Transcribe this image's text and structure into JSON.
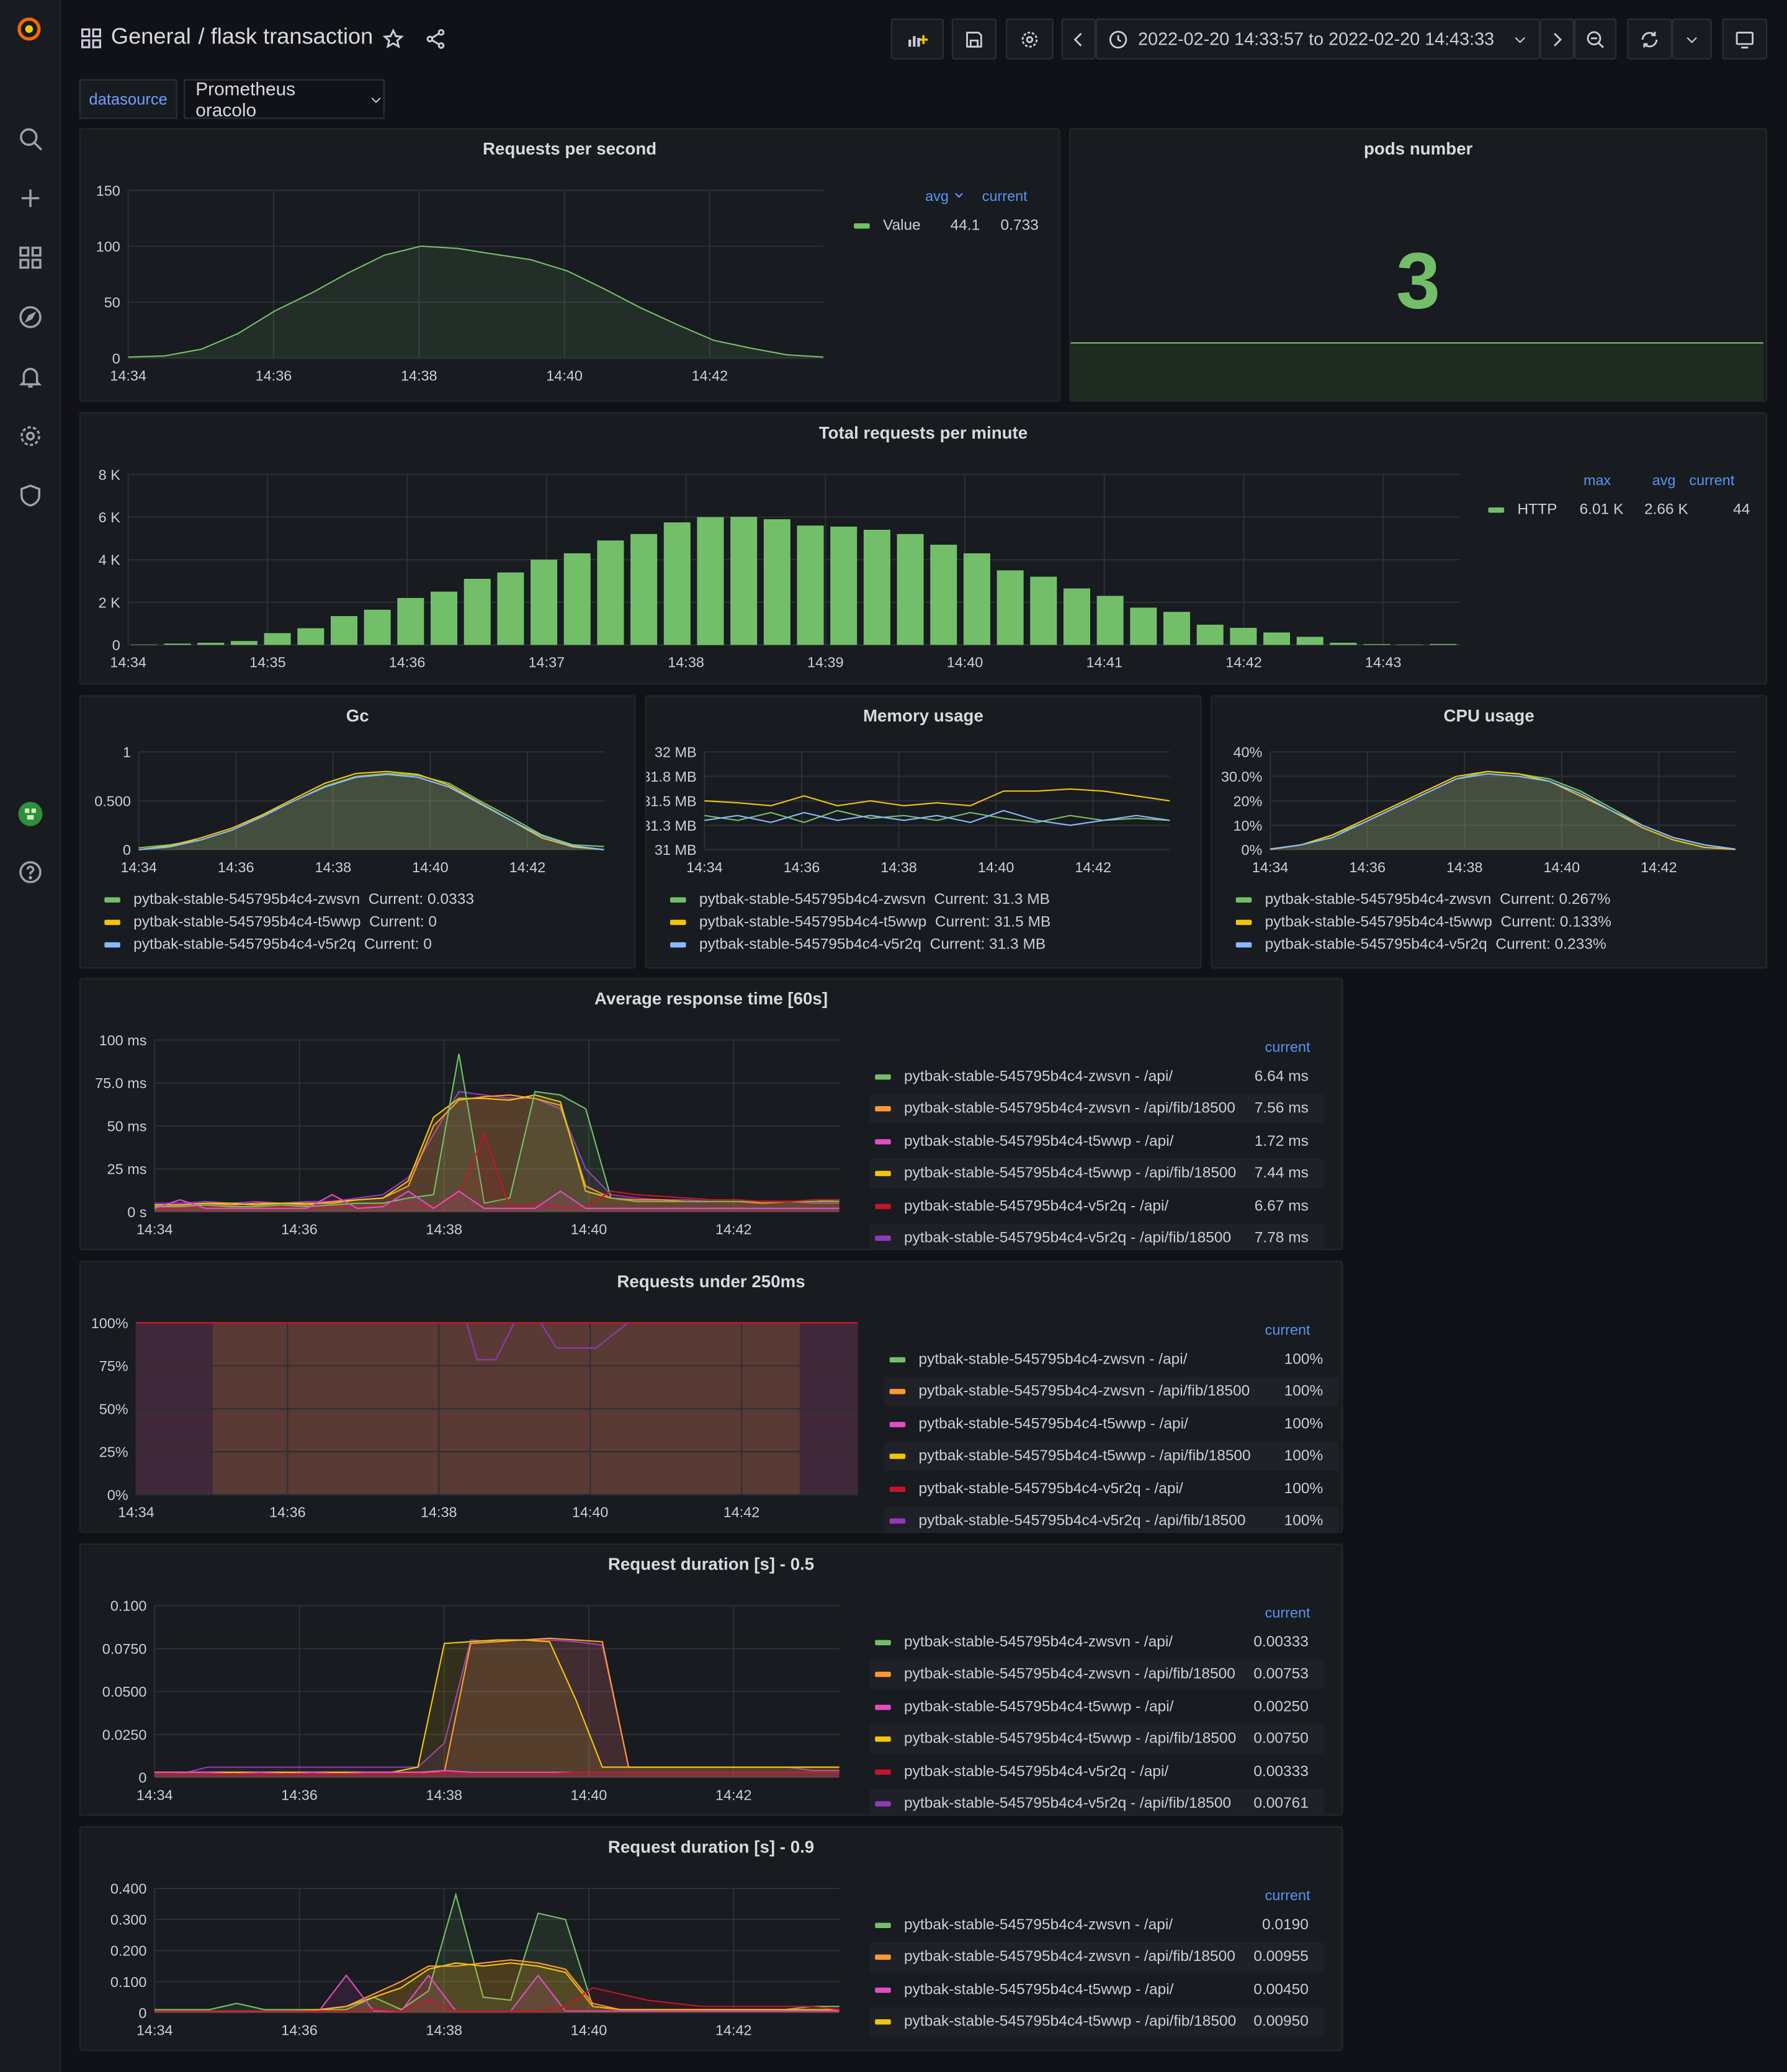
{
  "header": {
    "folder": "General",
    "title": "/ flask transaction",
    "time_range": "2022-02-20 14:33:57 to 2022-02-20 14:43:33"
  },
  "variables": {
    "label": "datasource",
    "value": "Prometheus oracolo"
  },
  "colors": {
    "green": "#73bf69",
    "orange": "#ff9830",
    "magenta": "#e04ec6",
    "yellow": "#f2c50c",
    "darkred": "#c4162a",
    "purple": "#8f3bb8",
    "cyan": "#8ab8ff",
    "blue": "#5794f2"
  },
  "panels": {
    "rps": {
      "title": "Requests per second",
      "legend_headers": [
        "avg",
        "current"
      ],
      "legend": [
        {
          "name": "Value",
          "avg": "44.1",
          "current": "0.733"
        }
      ],
      "y_ticks": [
        "150",
        "100",
        "50",
        "0"
      ],
      "x_ticks": [
        "14:34",
        "14:36",
        "14:38",
        "14:40",
        "14:42"
      ]
    },
    "pods": {
      "title": "pods number",
      "value": "3"
    },
    "trpm": {
      "title": "Total requests per minute",
      "legend_headers": [
        "max",
        "avg",
        "current"
      ],
      "legend": [
        {
          "name": "HTTP",
          "max": "6.01 K",
          "avg": "2.66 K",
          "current": "44"
        }
      ],
      "y_ticks": [
        "8 K",
        "6 K",
        "4 K",
        "2 K",
        "0"
      ],
      "x_ticks": [
        "14:34",
        "14:35",
        "14:36",
        "14:37",
        "14:38",
        "14:39",
        "14:40",
        "14:41",
        "14:42",
        "14:43"
      ]
    },
    "gc": {
      "title": "Gc",
      "y_ticks": [
        "1",
        "0.500",
        "0"
      ],
      "x_ticks": [
        "14:34",
        "14:36",
        "14:38",
        "14:40",
        "14:42"
      ],
      "legend": [
        {
          "name": "pytbak-stable-545795b4c4-zwsvn",
          "current": "Current: 0.0333"
        },
        {
          "name": "pytbak-stable-545795b4c4-t5wwp",
          "current": "Current: 0"
        },
        {
          "name": "pytbak-stable-545795b4c4-v5r2q",
          "current": "Current: 0"
        }
      ]
    },
    "mem": {
      "title": "Memory usage",
      "y_ticks": [
        "32 MB",
        "31.8 MB",
        "31.5 MB",
        "31.3 MB",
        "31 MB"
      ],
      "x_ticks": [
        "14:34",
        "14:36",
        "14:38",
        "14:40",
        "14:42"
      ],
      "legend": [
        {
          "name": "pytbak-stable-545795b4c4-zwsvn",
          "current": "Current: 31.3 MB"
        },
        {
          "name": "pytbak-stable-545795b4c4-t5wwp",
          "current": "Current: 31.5 MB"
        },
        {
          "name": "pytbak-stable-545795b4c4-v5r2q",
          "current": "Current: 31.3 MB"
        }
      ]
    },
    "cpu": {
      "title": "CPU usage",
      "y_ticks": [
        "40%",
        "30.0%",
        "20%",
        "10%",
        "0%"
      ],
      "x_ticks": [
        "14:34",
        "14:36",
        "14:38",
        "14:40",
        "14:42"
      ],
      "legend": [
        {
          "name": "pytbak-stable-545795b4c4-zwsvn",
          "current": "Current: 0.267%"
        },
        {
          "name": "pytbak-stable-545795b4c4-t5wwp",
          "current": "Current: 0.133%"
        },
        {
          "name": "pytbak-stable-545795b4c4-v5r2q",
          "current": "Current: 0.233%"
        }
      ]
    },
    "art": {
      "title": "Average response time [60s]",
      "legend_header": "current",
      "y_ticks": [
        "100 ms",
        "75.0 ms",
        "50 ms",
        "25 ms",
        "0 s"
      ],
      "x_ticks": [
        "14:34",
        "14:36",
        "14:38",
        "14:40",
        "14:42"
      ],
      "legend": [
        {
          "name": "pytbak-stable-545795b4c4-zwsvn - /api/",
          "current": "6.64 ms"
        },
        {
          "name": "pytbak-stable-545795b4c4-zwsvn - /api/fib/18500",
          "current": "7.56 ms"
        },
        {
          "name": "pytbak-stable-545795b4c4-t5wwp - /api/",
          "current": "1.72 ms"
        },
        {
          "name": "pytbak-stable-545795b4c4-t5wwp - /api/fib/18500",
          "current": "7.44 ms"
        },
        {
          "name": "pytbak-stable-545795b4c4-v5r2q - /api/",
          "current": "6.67 ms"
        },
        {
          "name": "pytbak-stable-545795b4c4-v5r2q - /api/fib/18500",
          "current": "7.78 ms"
        }
      ]
    },
    "r250": {
      "title": "Requests under 250ms",
      "legend_header": "current",
      "y_ticks": [
        "100%",
        "75%",
        "50%",
        "25%",
        "0%"
      ],
      "x_ticks": [
        "14:34",
        "14:36",
        "14:38",
        "14:40",
        "14:42"
      ],
      "legend": [
        {
          "name": "pytbak-stable-545795b4c4-zwsvn - /api/",
          "current": "100%"
        },
        {
          "name": "pytbak-stable-545795b4c4-zwsvn - /api/fib/18500",
          "current": "100%"
        },
        {
          "name": "pytbak-stable-545795b4c4-t5wwp - /api/",
          "current": "100%"
        },
        {
          "name": "pytbak-stable-545795b4c4-t5wwp - /api/fib/18500",
          "current": "100%"
        },
        {
          "name": "pytbak-stable-545795b4c4-v5r2q - /api/",
          "current": "100%"
        },
        {
          "name": "pytbak-stable-545795b4c4-v5r2q - /api/fib/18500",
          "current": "100%"
        }
      ]
    },
    "rd05": {
      "title": "Request duration [s] - 0.5",
      "legend_header": "current",
      "y_ticks": [
        "0.100",
        "0.0750",
        "0.0500",
        "0.0250",
        "0"
      ],
      "x_ticks": [
        "14:34",
        "14:36",
        "14:38",
        "14:40",
        "14:42"
      ],
      "legend": [
        {
          "name": "pytbak-stable-545795b4c4-zwsvn - /api/",
          "current": "0.00333"
        },
        {
          "name": "pytbak-stable-545795b4c4-zwsvn - /api/fib/18500",
          "current": "0.00753"
        },
        {
          "name": "pytbak-stable-545795b4c4-t5wwp - /api/",
          "current": "0.00250"
        },
        {
          "name": "pytbak-stable-545795b4c4-t5wwp - /api/fib/18500",
          "current": "0.00750"
        },
        {
          "name": "pytbak-stable-545795b4c4-v5r2q - /api/",
          "current": "0.00333"
        },
        {
          "name": "pytbak-stable-545795b4c4-v5r2q - /api/fib/18500",
          "current": "0.00761"
        }
      ]
    },
    "rd09": {
      "title": "Request duration [s] - 0.9",
      "legend_header": "current",
      "y_ticks": [
        "0.400",
        "0.300",
        "0.200",
        "0.100",
        "0"
      ],
      "x_ticks": [
        "14:34",
        "14:36",
        "14:38",
        "14:40",
        "14:42"
      ],
      "legend": [
        {
          "name": "pytbak-stable-545795b4c4-zwsvn - /api/",
          "current": "0.0190"
        },
        {
          "name": "pytbak-stable-545795b4c4-zwsvn - /api/fib/18500",
          "current": "0.00955"
        },
        {
          "name": "pytbak-stable-545795b4c4-t5wwp - /api/",
          "current": "0.00450"
        },
        {
          "name": "pytbak-stable-545795b4c4-t5wwp - /api/fib/18500",
          "current": "0.00950"
        }
      ]
    }
  },
  "chart_data": [
    {
      "type": "area",
      "title": "Requests per second",
      "ylim": [
        0,
        150
      ],
      "x": [
        "14:34",
        "14:34:30",
        "14:35",
        "14:35:30",
        "14:36",
        "14:36:30",
        "14:37",
        "14:37:30",
        "14:38",
        "14:38:30",
        "14:39",
        "14:39:30",
        "14:40",
        "14:40:30",
        "14:41",
        "14:41:30",
        "14:42",
        "14:42:30",
        "14:43",
        "14:43:30"
      ],
      "series": [
        {
          "name": "Value",
          "values": [
            1,
            2,
            8,
            22,
            42,
            58,
            76,
            92,
            100,
            98,
            93,
            88,
            78,
            62,
            45,
            30,
            16,
            9,
            3,
            1
          ]
        }
      ]
    },
    {
      "type": "bar",
      "title": "Total requests per minute",
      "ylim": [
        0,
        8000
      ],
      "series": [
        {
          "name": "HTTP",
          "values": [
            20,
            60,
            100,
            180,
            550,
            780,
            1350,
            1650,
            2200,
            2500,
            3100,
            3400,
            4000,
            4300,
            4900,
            5200,
            5750,
            6000,
            6010,
            5900,
            5600,
            5550,
            5400,
            5200,
            4700,
            4300,
            3500,
            3200,
            2650,
            2300,
            1750,
            1550,
            950,
            800,
            580,
            380,
            100,
            40,
            20,
            44
          ]
        }
      ]
    },
    {
      "type": "line",
      "title": "Gc",
      "ylim": [
        0,
        1
      ],
      "series": [
        {
          "name": "pytbak-stable-545795b4c4-zwsvn",
          "values": [
            0.02,
            0.05,
            0.1,
            0.2,
            0.35,
            0.5,
            0.65,
            0.75,
            0.78,
            0.76,
            0.68,
            0.5,
            0.33,
            0.15,
            0.05,
            0.0333
          ]
        },
        {
          "name": "pytbak-stable-545795b4c4-t5wwp",
          "values": [
            0,
            0.04,
            0.12,
            0.22,
            0.36,
            0.52,
            0.68,
            0.78,
            0.8,
            0.77,
            0.66,
            0.48,
            0.3,
            0.12,
            0.03,
            0
          ]
        },
        {
          "name": "pytbak-stable-545795b4c4-v5r2q",
          "values": [
            0,
            0.03,
            0.1,
            0.2,
            0.34,
            0.5,
            0.64,
            0.74,
            0.77,
            0.74,
            0.64,
            0.47,
            0.3,
            0.14,
            0.04,
            0
          ]
        }
      ]
    },
    {
      "type": "line",
      "title": "Memory usage",
      "ylim": [
        31,
        32
      ],
      "series": [
        {
          "name": "pytbak-stable-545795b4c4-zwsvn",
          "values": [
            31.35,
            31.3,
            31.38,
            31.28,
            31.4,
            31.32,
            31.35,
            31.3,
            31.38,
            31.32,
            31.28,
            31.35,
            31.3,
            31.32,
            31.3
          ]
        },
        {
          "name": "pytbak-stable-545795b4c4-t5wwp",
          "values": [
            31.5,
            31.48,
            31.45,
            31.55,
            31.45,
            31.5,
            31.45,
            31.48,
            31.45,
            31.6,
            31.6,
            31.62,
            31.6,
            31.55,
            31.5
          ]
        },
        {
          "name": "pytbak-stable-545795b4c4-v5r2q",
          "values": [
            31.3,
            31.35,
            31.28,
            31.38,
            31.3,
            31.35,
            31.3,
            31.35,
            31.28,
            31.4,
            31.3,
            31.25,
            31.3,
            31.35,
            31.3
          ]
        }
      ]
    },
    {
      "type": "area",
      "title": "CPU usage",
      "ylim": [
        0,
        40
      ],
      "series": [
        {
          "name": "pytbak-stable-545795b4c4-zwsvn",
          "values": [
            0.3,
            2,
            6,
            11,
            17,
            23,
            29,
            32,
            31,
            29,
            24,
            17,
            10,
            5,
            2,
            0.267
          ]
        },
        {
          "name": "pytbak-stable-545795b4c4-t5wwp",
          "values": [
            0.1,
            2,
            6,
            12,
            18,
            24,
            30,
            32,
            31,
            28,
            22,
            16,
            9,
            4,
            1,
            0.133
          ]
        },
        {
          "name": "pytbak-stable-545795b4c4-v5r2q",
          "values": [
            0.2,
            2,
            5,
            11,
            17,
            23,
            29,
            31,
            30,
            28,
            23,
            16,
            10,
            5,
            2,
            0.233
          ]
        }
      ]
    },
    {
      "type": "line",
      "title": "Average response time [60s]",
      "ylim": [
        0,
        100
      ]
    },
    {
      "type": "area",
      "title": "Requests under 250ms",
      "ylim": [
        0,
        100
      ]
    },
    {
      "type": "line",
      "title": "Request duration [s] - 0.5",
      "ylim": [
        0,
        0.1
      ]
    },
    {
      "type": "line",
      "title": "Request duration [s] - 0.9",
      "ylim": [
        0,
        0.4
      ]
    }
  ]
}
